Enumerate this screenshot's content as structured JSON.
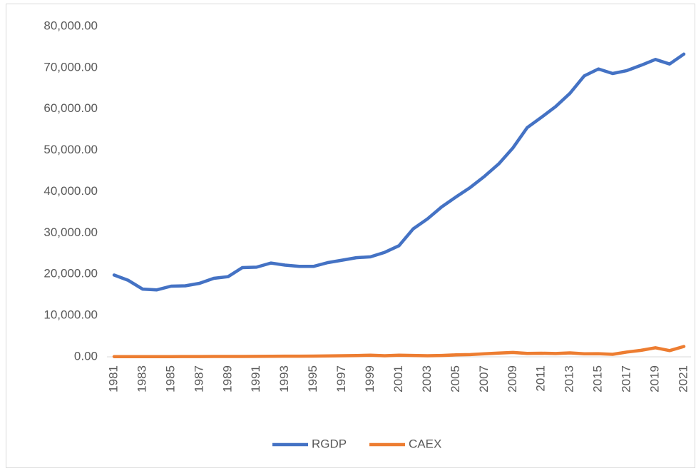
{
  "chart_data": {
    "type": "line",
    "categories": [
      "1981",
      null,
      "1983",
      null,
      "1985",
      null,
      "1987",
      null,
      "1989",
      null,
      "1991",
      null,
      "1993",
      null,
      "1995",
      null,
      "1997",
      null,
      "1999",
      null,
      "2001",
      null,
      "2003",
      null,
      "2005",
      null,
      "2007",
      null,
      "2009",
      null,
      "2011",
      null,
      "2013",
      null,
      "2015",
      null,
      "2017",
      null,
      "2019",
      null,
      "2021"
    ],
    "series": [
      {
        "name": "RGDP",
        "color": "#4472c4",
        "values": [
          19800,
          18500,
          16400,
          16200,
          17100,
          17200,
          17800,
          19000,
          19400,
          21600,
          21700,
          22700,
          22200,
          21900,
          21900,
          22800,
          23400,
          24000,
          24200,
          25300,
          26900,
          31000,
          33400,
          36300,
          38700,
          41000,
          43700,
          46700,
          50600,
          55500,
          58000,
          60600,
          63800,
          68000,
          69700,
          68600,
          69300,
          70600,
          72000,
          70900,
          73300
        ]
      },
      {
        "name": "CAEX",
        "color": "#ed7d31",
        "values": [
          50,
          50,
          60,
          60,
          60,
          70,
          70,
          80,
          80,
          90,
          100,
          120,
          150,
          150,
          180,
          220,
          260,
          300,
          400,
          260,
          380,
          320,
          260,
          330,
          460,
          530,
          720,
          890,
          1060,
          820,
          860,
          800,
          950,
          740,
          760,
          600,
          1150,
          1570,
          2200,
          1500,
          2500
        ]
      }
    ],
    "ylim": [
      0,
      80000
    ],
    "yticks": [
      {
        "value": 0,
        "label": "0.00"
      },
      {
        "value": 10000,
        "label": "10,000.00"
      },
      {
        "value": 20000,
        "label": "20,000.00"
      },
      {
        "value": 30000,
        "label": "30,000.00"
      },
      {
        "value": 40000,
        "label": "40,000.00"
      },
      {
        "value": 50000,
        "label": "50,000.00"
      },
      {
        "value": 60000,
        "label": "60,000.00"
      },
      {
        "value": 70000,
        "label": "70,000.00"
      },
      {
        "value": 80000,
        "label": "80,000.00"
      }
    ],
    "grid": false,
    "legend": "bottom"
  }
}
